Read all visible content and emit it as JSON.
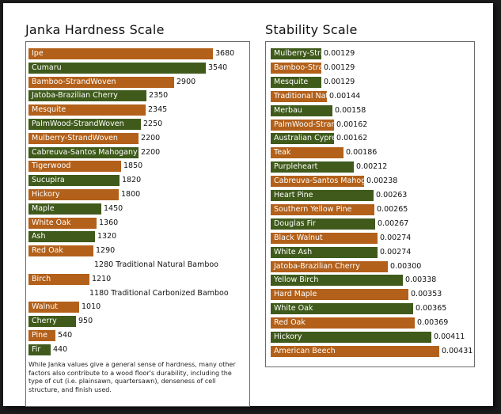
{
  "chart_data": [
    {
      "type": "bar",
      "orientation": "horizontal",
      "title": "Janka Hardness Scale",
      "note": "While Janka values give a general sense of hardness, many other factors also contribute to a wood floor's durability, including the type of cut (i.e. plainsawn, quartersawn), denseness of cell structure, and finish used.",
      "bars": [
        {
          "label": "Ipe",
          "value": 3680,
          "color": "orange"
        },
        {
          "label": "Cumaru",
          "value": 3540,
          "color": "green"
        },
        {
          "label": "Bamboo-StrandWoven",
          "value": 2900,
          "color": "orange"
        },
        {
          "label": "Jatoba-Brazilian Cherry",
          "value": 2350,
          "color": "green"
        },
        {
          "label": "Mesquite",
          "value": 2345,
          "color": "orange"
        },
        {
          "label": "PalmWood-StrandWoven",
          "value": 2250,
          "color": "green"
        },
        {
          "label": "Mulberry-StrandWoven",
          "value": 2200,
          "color": "orange"
        },
        {
          "label": "Cabreuva-Santos Mahogany",
          "value": 2200,
          "color": "green"
        },
        {
          "label": "Tigerwood",
          "value": 1850,
          "color": "orange"
        },
        {
          "label": "Sucupira",
          "value": 1820,
          "color": "green"
        },
        {
          "label": "Hickory",
          "value": 1800,
          "color": "orange"
        },
        {
          "label": "Maple",
          "value": 1450,
          "color": "green"
        },
        {
          "label": "White Oak",
          "value": 1360,
          "color": "orange"
        },
        {
          "label": "Ash",
          "value": 1320,
          "color": "green"
        },
        {
          "label": "Red Oak",
          "value": 1290,
          "color": "orange"
        },
        {
          "label": "Traditional Natural Bamboo",
          "value": 1280,
          "color": "none"
        },
        {
          "label": "Birch",
          "value": 1210,
          "color": "orange"
        },
        {
          "label": "Traditional Carbonized Bamboo",
          "value": 1180,
          "color": "none"
        },
        {
          "label": "Walnut",
          "value": 1010,
          "color": "orange"
        },
        {
          "label": "Cherry",
          "value": 950,
          "color": "green"
        },
        {
          "label": "Pine",
          "value": 540,
          "color": "orange"
        },
        {
          "label": "Fir",
          "value": 440,
          "color": "green"
        }
      ]
    },
    {
      "type": "bar",
      "orientation": "horizontal",
      "title": "Stability Scale",
      "bars": [
        {
          "label": "Mulberry-StrandWoven",
          "value": "0.00129",
          "color": "green"
        },
        {
          "label": "Bamboo-StrandWoven",
          "value": "0.00129",
          "color": "orange"
        },
        {
          "label": "Mesquite",
          "value": "0.00129",
          "color": "green"
        },
        {
          "label": "Traditional Natural Bamboo",
          "value": "0.00144",
          "color": "orange"
        },
        {
          "label": "Merbau",
          "value": "0.00158",
          "color": "green"
        },
        {
          "label": "PalmWood-StrandWoven",
          "value": "0.00162",
          "color": "orange"
        },
        {
          "label": "Australian Cypress",
          "value": "0.00162",
          "color": "green"
        },
        {
          "label": "Teak",
          "value": "0.00186",
          "color": "orange"
        },
        {
          "label": "Purpleheart",
          "value": "0.00212",
          "color": "green"
        },
        {
          "label": "Cabreuva-Santos Mahogany",
          "value": "0.00238",
          "color": "orange"
        },
        {
          "label": "Heart Pine",
          "value": "0.00263",
          "color": "green"
        },
        {
          "label": "Southern Yellow Pine",
          "value": "0.00265",
          "color": "orange"
        },
        {
          "label": "Douglas Fir",
          "value": "0.00267",
          "color": "green"
        },
        {
          "label": "Black Walnut",
          "value": "0.00274",
          "color": "orange"
        },
        {
          "label": "White Ash",
          "value": "0.00274",
          "color": "green"
        },
        {
          "label": "Jatoba-Brazilian Cherry",
          "value": "0.00300",
          "color": "orange"
        },
        {
          "label": "Yellow Birch",
          "value": "0.00338",
          "color": "green"
        },
        {
          "label": "Hard Maple",
          "value": "0.00353",
          "color": "orange"
        },
        {
          "label": "White Oak",
          "value": "0.00365",
          "color": "green"
        },
        {
          "label": "Red Oak",
          "value": "0.00369",
          "color": "orange"
        },
        {
          "label": "Hickory",
          "value": "0.00411",
          "color": "green"
        },
        {
          "label": "American Beech",
          "value": "0.00431",
          "color": "orange"
        }
      ]
    }
  ]
}
